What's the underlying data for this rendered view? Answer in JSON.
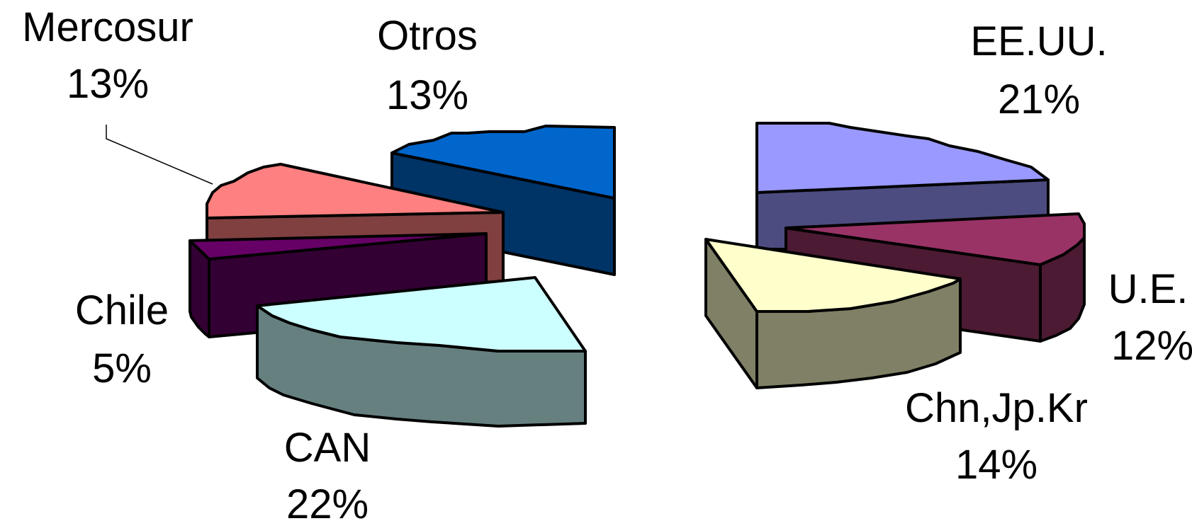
{
  "chart_data": {
    "type": "pie",
    "title": "",
    "legend": "none",
    "slices": [
      {
        "label": "Mercosur",
        "value": 13,
        "value_label": "13%",
        "top_color": "#ff8080",
        "side_color": "#804040"
      },
      {
        "label": "Otros",
        "value": 13,
        "value_label": "13%",
        "top_color": "#0066cc",
        "side_color": "#003366"
      },
      {
        "label": "Chile",
        "value": 5,
        "value_label": "5%",
        "top_color": "#660066",
        "side_color": "#330033"
      },
      {
        "label": "CAN",
        "value": 22,
        "value_label": "22%",
        "top_color": "#ccffff",
        "side_color": "#668080"
      },
      {
        "label": "EE.UU.",
        "value": 21,
        "value_label": "21%",
        "top_color": "#9999ff",
        "side_color": "#4c4c80"
      },
      {
        "label": "U.E.",
        "value": 12,
        "value_label": "12%",
        "top_color": "#993366",
        "side_color": "#4c1a33"
      },
      {
        "label": "Chn,Jp.Kr",
        "value": 14,
        "value_label": "14%",
        "top_color": "#ffffcc",
        "side_color": "#808066"
      }
    ]
  }
}
